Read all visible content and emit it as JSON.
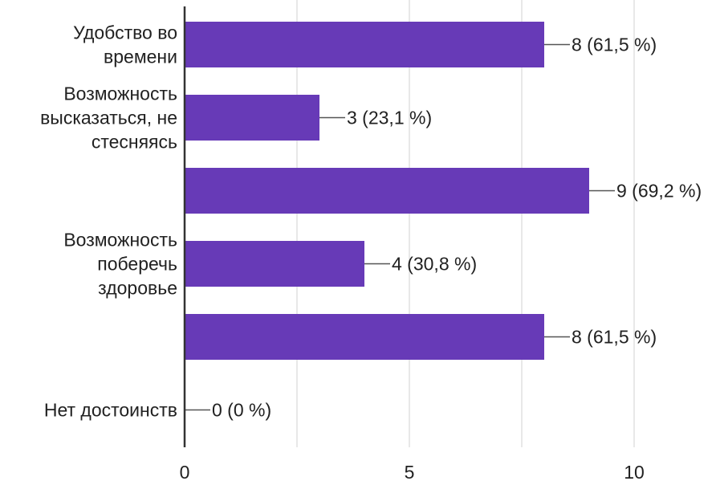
{
  "chart_data": {
    "type": "bar",
    "orientation": "horizontal",
    "title": "",
    "xlabel": "",
    "ylabel": "",
    "xlim": [
      0,
      10
    ],
    "x_ticks": [
      0,
      5,
      10
    ],
    "x_tick_labels": [
      "0",
      "5",
      "10"
    ],
    "grid": true,
    "categories": [
      [
        "Удобство во",
        "времени"
      ],
      [
        "Возможность",
        "высказаться, не",
        "стесняясь"
      ],
      [],
      [
        "Возможность",
        "поберечь",
        "здоровье"
      ],
      [],
      [
        "Нет достоинств"
      ]
    ],
    "values": [
      8,
      3,
      9,
      4,
      8,
      0
    ],
    "data_labels": [
      "8 (61,5 %)",
      "3 (23,1 %)",
      "9 (69,2 %)",
      "4 (30,8 %)",
      "8 (61,5 %)",
      "0 (0 %)"
    ],
    "colors": {
      "bar": "#673ab7",
      "axis": "#333333",
      "grid": "#e0e0e0",
      "leader": "#555555"
    }
  }
}
